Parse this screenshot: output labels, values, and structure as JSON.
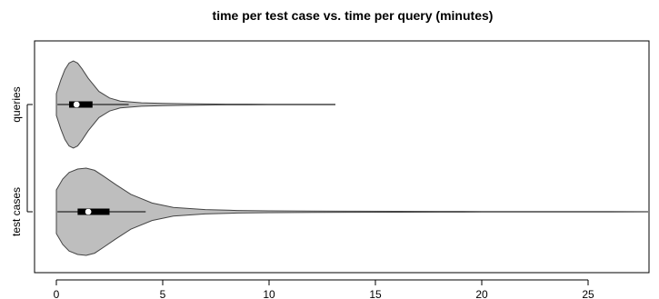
{
  "chart_data": {
    "type": "violin",
    "title": "time per test case vs. time per query (minutes)",
    "xlabel": "",
    "ylabel": "",
    "orientation": "horizontal",
    "xlim": [
      -1,
      27.8
    ],
    "x_ticks": [
      0,
      5,
      10,
      15,
      20,
      25
    ],
    "x_tick_labels": [
      "0",
      "5",
      "10",
      "15",
      "20",
      "25"
    ],
    "categories": [
      "queries",
      "test cases"
    ],
    "fill_color": "#bebebe",
    "outline_color": "#444444",
    "grid": false,
    "series": [
      {
        "category": "queries",
        "min": 0.05,
        "q1": 0.6,
        "median": 0.95,
        "q3": 1.7,
        "whisker_high": 3.4,
        "max": 13.1,
        "density_profile": [
          [
            0.0,
            0.25
          ],
          [
            0.2,
            0.55
          ],
          [
            0.4,
            0.8
          ],
          [
            0.6,
            0.95
          ],
          [
            0.8,
            1.0
          ],
          [
            1.0,
            0.95
          ],
          [
            1.2,
            0.82
          ],
          [
            1.5,
            0.6
          ],
          [
            2.0,
            0.3
          ],
          [
            2.5,
            0.15
          ],
          [
            3.0,
            0.08
          ],
          [
            4.0,
            0.04
          ],
          [
            5.0,
            0.025
          ],
          [
            6.0,
            0.018
          ],
          [
            7.0,
            0.012
          ],
          [
            8.0,
            0.009
          ],
          [
            9.0,
            0.008
          ],
          [
            10.0,
            0.007
          ],
          [
            11.0,
            0.006
          ],
          [
            12.0,
            0.005
          ],
          [
            13.1,
            0.004
          ]
        ]
      },
      {
        "category": "test cases",
        "min": 0.05,
        "q1": 1.0,
        "median": 1.5,
        "q3": 2.5,
        "whisker_high": 4.2,
        "max": 27.8,
        "density_profile": [
          [
            0.0,
            0.5
          ],
          [
            0.3,
            0.75
          ],
          [
            0.6,
            0.9
          ],
          [
            1.0,
            0.98
          ],
          [
            1.4,
            1.0
          ],
          [
            1.8,
            0.95
          ],
          [
            2.2,
            0.82
          ],
          [
            2.8,
            0.62
          ],
          [
            3.5,
            0.4
          ],
          [
            4.5,
            0.2
          ],
          [
            5.5,
            0.1
          ],
          [
            7.0,
            0.05
          ],
          [
            8.5,
            0.03
          ],
          [
            10.0,
            0.02
          ],
          [
            12.0,
            0.015
          ],
          [
            14.0,
            0.012
          ],
          [
            16.0,
            0.01
          ],
          [
            18.0,
            0.008
          ],
          [
            20.0,
            0.007
          ],
          [
            22.0,
            0.006
          ],
          [
            24.0,
            0.005
          ],
          [
            26.0,
            0.004
          ],
          [
            27.8,
            0.003
          ]
        ]
      }
    ]
  }
}
